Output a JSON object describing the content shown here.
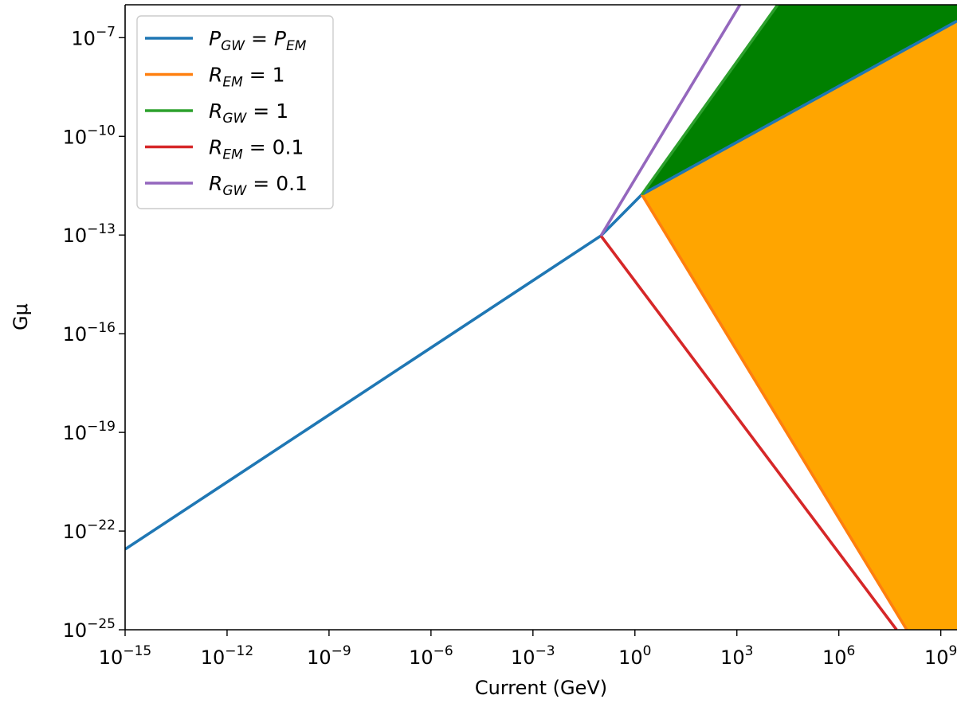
{
  "chart_data": {
    "type": "line",
    "xlabel": "Current (GeV)",
    "ylabel": "Gμ",
    "xscale": "log",
    "yscale": "log",
    "xlim": [
      1e-15,
      3000000000.0
    ],
    "ylim": [
      1e-25,
      1e-06
    ],
    "grid": false,
    "legend_position": "top-left",
    "xticks": [
      {
        "value": 1e-15,
        "base": "10",
        "exp": "−15"
      },
      {
        "value": 1e-12,
        "base": "10",
        "exp": "−12"
      },
      {
        "value": 1e-09,
        "base": "10",
        "exp": "−9"
      },
      {
        "value": 1e-06,
        "base": "10",
        "exp": "−6"
      },
      {
        "value": 0.001,
        "base": "10",
        "exp": "−3"
      },
      {
        "value": 1.0,
        "base": "10",
        "exp": "0"
      },
      {
        "value": 1000.0,
        "base": "10",
        "exp": "3"
      },
      {
        "value": 1000000.0,
        "base": "10",
        "exp": "6"
      },
      {
        "value": 1000000000.0,
        "base": "10",
        "exp": "9"
      }
    ],
    "yticks": [
      {
        "value": 1e-25,
        "base": "10",
        "exp": "−25"
      },
      {
        "value": 1e-22,
        "base": "10",
        "exp": "−22"
      },
      {
        "value": 1e-19,
        "base": "10",
        "exp": "−19"
      },
      {
        "value": 1e-16,
        "base": "10",
        "exp": "−16"
      },
      {
        "value": 1e-13,
        "base": "10",
        "exp": "−13"
      },
      {
        "value": 1e-10,
        "base": "10",
        "exp": "−10"
      },
      {
        "value": 1e-07,
        "base": "10",
        "exp": "−7"
      }
    ],
    "series": [
      {
        "name": "P_GW = P_EM",
        "legend": {
          "main1": "P",
          "sub1": "GW",
          "eq": " = ",
          "main2": "P",
          "sub2": "EM"
        },
        "color": "#1f77b4",
        "x": [
          1e-15,
          0.1,
          1.6,
          3000000000.0
        ],
        "y": [
          2.8e-23,
          9.5e-14,
          1.7e-12,
          3.2e-07
        ]
      },
      {
        "name": "R_EM = 1",
        "legend": {
          "main1": "R",
          "sub1": "EM",
          "eq": " = ",
          "value": "1"
        },
        "color": "#ff7f0e",
        "x": [
          1.6,
          100000000.0
        ],
        "y": [
          1.7e-12,
          1e-25
        ]
      },
      {
        "name": "R_GW = 1",
        "legend": {
          "main1": "R",
          "sub1": "GW",
          "eq": " = ",
          "value": "1"
        },
        "color": "#2ca02c",
        "x": [
          1.6,
          20000
        ],
        "y": [
          1.7e-12,
          1.4e-06
        ]
      },
      {
        "name": "R_EM = 0.1",
        "legend": {
          "main1": "R",
          "sub1": "EM",
          "eq": " = ",
          "value": "0.1"
        },
        "color": "#d62728",
        "x": [
          0.1,
          50000000.0
        ],
        "y": [
          9.5e-14,
          1e-25
        ]
      },
      {
        "name": "R_GW = 0.1",
        "legend": {
          "main1": "R",
          "sub1": "GW",
          "eq": " = ",
          "value": "0.1"
        },
        "color": "#9467bd",
        "x": [
          0.1,
          1500
        ],
        "y": [
          9.5e-14,
          1.4e-06
        ]
      }
    ],
    "fills": [
      {
        "color": "#008000",
        "polygon": [
          [
            1.6,
            1.7e-12
          ],
          [
            20000,
            1.4e-06
          ],
          [
            3000000000.0,
            1.4e-06
          ],
          [
            3000000000.0,
            3.2e-07
          ]
        ]
      },
      {
        "color": "#ffa500",
        "polygon": [
          [
            1.6,
            1.7e-12
          ],
          [
            3000000000.0,
            3.2e-07
          ],
          [
            3000000000.0,
            1e-25
          ],
          [
            100000000.0,
            1e-25
          ]
        ]
      }
    ]
  }
}
